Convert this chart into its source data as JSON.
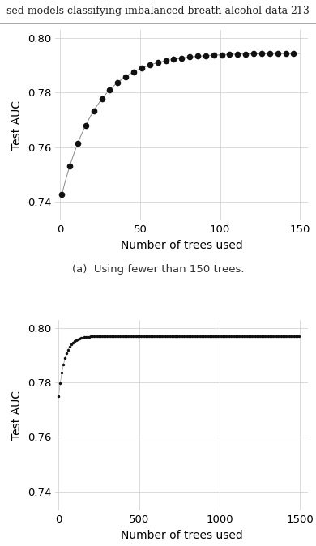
{
  "header_text": "sed models classifying imbalanced breath alcohol data",
  "header_page": "213",
  "panel1": {
    "xlim": [
      -3,
      155
    ],
    "ylim": [
      0.733,
      0.803
    ],
    "yticks": [
      0.74,
      0.76,
      0.78,
      0.8
    ],
    "xticks": [
      0,
      50,
      100,
      150
    ],
    "xlabel": "Number of trees used",
    "ylabel": "Test AUC",
    "color": "#111111",
    "line_color": "#888888",
    "markersize": 5.5,
    "x_step": 5
  },
  "panel2": {
    "xlim": [
      -20,
      1550
    ],
    "ylim": [
      0.733,
      0.803
    ],
    "yticks": [
      0.74,
      0.76,
      0.78,
      0.8
    ],
    "xticks": [
      0,
      500,
      1000,
      1500
    ],
    "xlabel": "Number of trees used",
    "ylabel": "Test AUC",
    "caption": "(a)  Using fewer than 150 trees.",
    "color": "#111111",
    "line_color": "#888888",
    "markersize": 2.5,
    "x_step": 10
  },
  "background_color": "#ffffff",
  "grid_color": "#cccccc",
  "tick_fontsize": 9.5,
  "label_fontsize": 10,
  "caption_fontsize": 9.5,
  "header_fontsize": 9
}
